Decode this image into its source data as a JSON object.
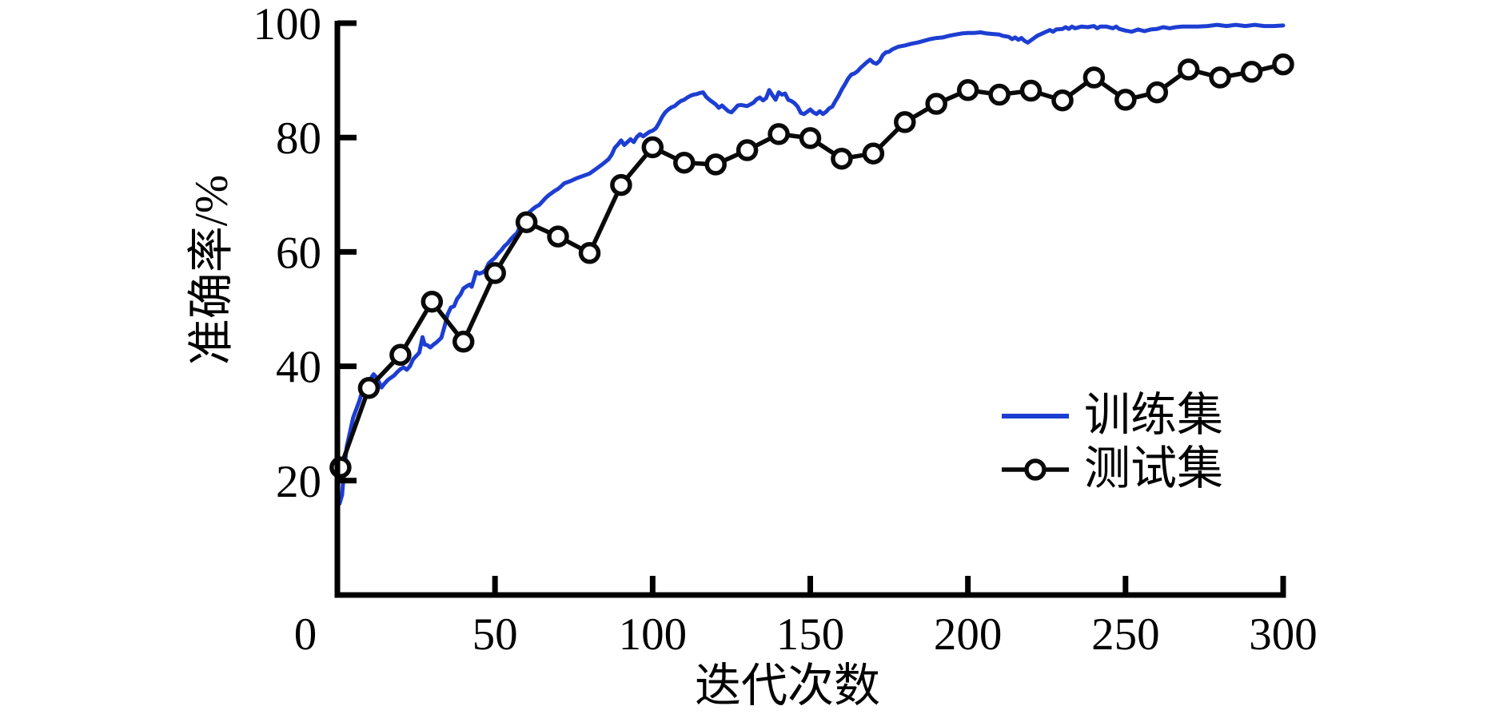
{
  "chart_data": {
    "type": "line",
    "title": "",
    "xlabel": "迭代次数",
    "ylabel": "准确率/%",
    "xlim": [
      0,
      300
    ],
    "ylim": [
      0,
      100
    ],
    "xticks": [
      0,
      50,
      100,
      150,
      200,
      250,
      300
    ],
    "yticks": [
      20,
      40,
      60,
      80,
      100
    ],
    "grid": false,
    "legend_position": "right-middle",
    "axis_color": "#000000",
    "background": "#ffffff",
    "series": [
      {
        "name": "训练集",
        "color": "#1d3ed2",
        "marker": "none",
        "line_width": 5,
        "points": [
          [
            0.7,
            16
          ],
          [
            1.5,
            17.5
          ],
          [
            2,
            21
          ],
          [
            3,
            26
          ],
          [
            4,
            28.5
          ],
          [
            5,
            31
          ],
          [
            6,
            32.5
          ],
          [
            7,
            34
          ],
          [
            8,
            35.8
          ],
          [
            9,
            37
          ],
          [
            10,
            37.3
          ],
          [
            11,
            38.2
          ],
          [
            11.5,
            38.6
          ],
          [
            12.5,
            38
          ],
          [
            14,
            36.3
          ],
          [
            15,
            37
          ],
          [
            16,
            37.6
          ],
          [
            17,
            38
          ],
          [
            18,
            38.4
          ],
          [
            19,
            39
          ],
          [
            20,
            39.5
          ],
          [
            21,
            39.8
          ],
          [
            22,
            39.4
          ],
          [
            23,
            40
          ],
          [
            24,
            41.2
          ],
          [
            25,
            41.8
          ],
          [
            26,
            42.4
          ],
          [
            27,
            45.1
          ],
          [
            27.7,
            43.8
          ],
          [
            28.5,
            43.7
          ],
          [
            29.5,
            43.3
          ],
          [
            30.5,
            43.8
          ],
          [
            31.5,
            44.2
          ],
          [
            33,
            45
          ],
          [
            34,
            47
          ],
          [
            35,
            49.1
          ],
          [
            36,
            50.3
          ],
          [
            37,
            50.5
          ],
          [
            38,
            51.8
          ],
          [
            39,
            52.5
          ],
          [
            40,
            53.6
          ],
          [
            41,
            54
          ],
          [
            42,
            54.3
          ],
          [
            42.6,
            53.9
          ],
          [
            43.5,
            55.5
          ],
          [
            44,
            56.5
          ],
          [
            45,
            56.2
          ],
          [
            46,
            56.4
          ],
          [
            47,
            56.8
          ],
          [
            48,
            58
          ],
          [
            49,
            58.5
          ],
          [
            50,
            59
          ],
          [
            51,
            59.7
          ],
          [
            52,
            60.3
          ],
          [
            53,
            61
          ],
          [
            54,
            61.5
          ],
          [
            55,
            62.2
          ],
          [
            56,
            62.8
          ],
          [
            57,
            63.3
          ],
          [
            58,
            64.5
          ],
          [
            59,
            65.4
          ],
          [
            60,
            66.3
          ],
          [
            61,
            67
          ],
          [
            62,
            67.5
          ],
          [
            63,
            67.9
          ],
          [
            64,
            68.2
          ],
          [
            65,
            68.8
          ],
          [
            66,
            69.4
          ],
          [
            67,
            69.9
          ],
          [
            68,
            70.3
          ],
          [
            69,
            70.7
          ],
          [
            70,
            71
          ],
          [
            71,
            71.5
          ],
          [
            72,
            72
          ],
          [
            74,
            72.4
          ],
          [
            76,
            72.9
          ],
          [
            78,
            73.3
          ],
          [
            80,
            73.7
          ],
          [
            82,
            74.5
          ],
          [
            84,
            75.3
          ],
          [
            86,
            76.2
          ],
          [
            87,
            77
          ],
          [
            88,
            78.2
          ],
          [
            89,
            78.8
          ],
          [
            90,
            79.5
          ],
          [
            91,
            78.7
          ],
          [
            92,
            79.2
          ],
          [
            93,
            79.7
          ],
          [
            94,
            79.2
          ],
          [
            95,
            80.1
          ],
          [
            96,
            80.6
          ],
          [
            97,
            80.2
          ],
          [
            98,
            80.6
          ],
          [
            99,
            81
          ],
          [
            100,
            81.2
          ],
          [
            101,
            81.6
          ],
          [
            102,
            82.5
          ],
          [
            103,
            83.6
          ],
          [
            104,
            84.4
          ],
          [
            105,
            84.9
          ],
          [
            106,
            85.3
          ],
          [
            107,
            85.5
          ],
          [
            108,
            86
          ],
          [
            109,
            86.4
          ],
          [
            110,
            86.6
          ],
          [
            111,
            87
          ],
          [
            112,
            87.3
          ],
          [
            113,
            87.5
          ],
          [
            114,
            87.6
          ],
          [
            115,
            87.8
          ],
          [
            116,
            87.9
          ],
          [
            117,
            87.1
          ],
          [
            118,
            86.6
          ],
          [
            119,
            86.2
          ],
          [
            120,
            85.8
          ],
          [
            121,
            85.2
          ],
          [
            122,
            85.6
          ],
          [
            123,
            85.1
          ],
          [
            124,
            84.6
          ],
          [
            125,
            84.4
          ],
          [
            126,
            85
          ],
          [
            127,
            85.6
          ],
          [
            128,
            85.7
          ],
          [
            130,
            85.5
          ],
          [
            131,
            85.8
          ],
          [
            132,
            86.1
          ],
          [
            133,
            86.7
          ],
          [
            134,
            87
          ],
          [
            135,
            86.5
          ],
          [
            136,
            86.9
          ],
          [
            137,
            88.3
          ],
          [
            138,
            87.4
          ],
          [
            139,
            86.6
          ],
          [
            140,
            87.9
          ],
          [
            141,
            87.5
          ],
          [
            142,
            87.7
          ],
          [
            143,
            86.6
          ],
          [
            144,
            86.4
          ],
          [
            145,
            86
          ],
          [
            146,
            85.4
          ],
          [
            147,
            84.3
          ],
          [
            148,
            84.1
          ],
          [
            149,
            84.5
          ],
          [
            150,
            84.9
          ],
          [
            151,
            84.4
          ],
          [
            152,
            84.1
          ],
          [
            153,
            84.6
          ],
          [
            154,
            84.1
          ],
          [
            155,
            84.5
          ],
          [
            156,
            85.1
          ],
          [
            157,
            85.4
          ],
          [
            158,
            86.4
          ],
          [
            159,
            87.3
          ],
          [
            160,
            88.4
          ],
          [
            161,
            89.3
          ],
          [
            162,
            90.3
          ],
          [
            163,
            91
          ],
          [
            164,
            91.2
          ],
          [
            165,
            91.6
          ],
          [
            166,
            92.2
          ],
          [
            167,
            92.7
          ],
          [
            168,
            93.2
          ],
          [
            169,
            93.6
          ],
          [
            170,
            93.1
          ],
          [
            171,
            92.9
          ],
          [
            172,
            93.4
          ],
          [
            173,
            94.4
          ],
          [
            174,
            94.9
          ],
          [
            175,
            95
          ],
          [
            176,
            95.4
          ],
          [
            178,
            95.9
          ],
          [
            180,
            96.1
          ],
          [
            182,
            96.4
          ],
          [
            184,
            96.6
          ],
          [
            186,
            96.9
          ],
          [
            188,
            97.2
          ],
          [
            190,
            97.4
          ],
          [
            192,
            97.5
          ],
          [
            194,
            97.8
          ],
          [
            196,
            98
          ],
          [
            198,
            98.2
          ],
          [
            200,
            98.3
          ],
          [
            202,
            98.3
          ],
          [
            204,
            98.4
          ],
          [
            206,
            98.2
          ],
          [
            208,
            98.1
          ],
          [
            210,
            98
          ],
          [
            211,
            97.8
          ],
          [
            212,
            97.7
          ],
          [
            213,
            97.6
          ],
          [
            214,
            97.2
          ],
          [
            215,
            97.5
          ],
          [
            216,
            97.1
          ],
          [
            217,
            97.4
          ],
          [
            218,
            96.9
          ],
          [
            219,
            96.6
          ],
          [
            220,
            97
          ],
          [
            221,
            97.4
          ],
          [
            222,
            97.8
          ],
          [
            224,
            98.3
          ],
          [
            226,
            98.8
          ],
          [
            227,
            98.5
          ],
          [
            228,
            98.9
          ],
          [
            230,
            99
          ],
          [
            231,
            99.3
          ],
          [
            232,
            99
          ],
          [
            233,
            99.4
          ],
          [
            234,
            99.1
          ],
          [
            236,
            99.4
          ],
          [
            238,
            99.3
          ],
          [
            240,
            99.5
          ],
          [
            241,
            99.1
          ],
          [
            242,
            99.4
          ],
          [
            244,
            99.4
          ],
          [
            246,
            99.1
          ],
          [
            247,
            99.4
          ],
          [
            248,
            99
          ],
          [
            250,
            98.7
          ],
          [
            252,
            98.5
          ],
          [
            254,
            98.9
          ],
          [
            256,
            98.6
          ],
          [
            258,
            98.9
          ],
          [
            260,
            99
          ],
          [
            262,
            99.3
          ],
          [
            264,
            99.1
          ],
          [
            266,
            99.3
          ],
          [
            268,
            99.4
          ],
          [
            270,
            99.4
          ],
          [
            273,
            99.4
          ],
          [
            276,
            99.5
          ],
          [
            279,
            99.7
          ],
          [
            282,
            99.5
          ],
          [
            285,
            99.7
          ],
          [
            288,
            99.5
          ],
          [
            291,
            99.7
          ],
          [
            294,
            99.5
          ],
          [
            297,
            99.5
          ],
          [
            300,
            99.6
          ]
        ]
      },
      {
        "name": "测试集",
        "color": "#0a0a0a",
        "marker": "circle-open",
        "line_width": 5.5,
        "marker_radius": 11,
        "points": [
          [
            1,
            22.3
          ],
          [
            10,
            36.2
          ],
          [
            20,
            42
          ],
          [
            30,
            51.3
          ],
          [
            40,
            44.3
          ],
          [
            50,
            56.3
          ],
          [
            60,
            65.2
          ],
          [
            70,
            62.7
          ],
          [
            80,
            59.8
          ],
          [
            90,
            71.7
          ],
          [
            100,
            78.3
          ],
          [
            110,
            75.6
          ],
          [
            120,
            75.3
          ],
          [
            130,
            77.8
          ],
          [
            140,
            80.6
          ],
          [
            150,
            79.9
          ],
          [
            160,
            76.3
          ],
          [
            170,
            77.2
          ],
          [
            180,
            82.7
          ],
          [
            190,
            85.9
          ],
          [
            200,
            88.3
          ],
          [
            210,
            87.5
          ],
          [
            220,
            88.2
          ],
          [
            230,
            86.5
          ],
          [
            240,
            90.5
          ],
          [
            250,
            86.6
          ],
          [
            260,
            87.9
          ],
          [
            270,
            91.9
          ],
          [
            280,
            90.5
          ],
          [
            290,
            91.5
          ],
          [
            300,
            92.8
          ]
        ]
      }
    ]
  }
}
